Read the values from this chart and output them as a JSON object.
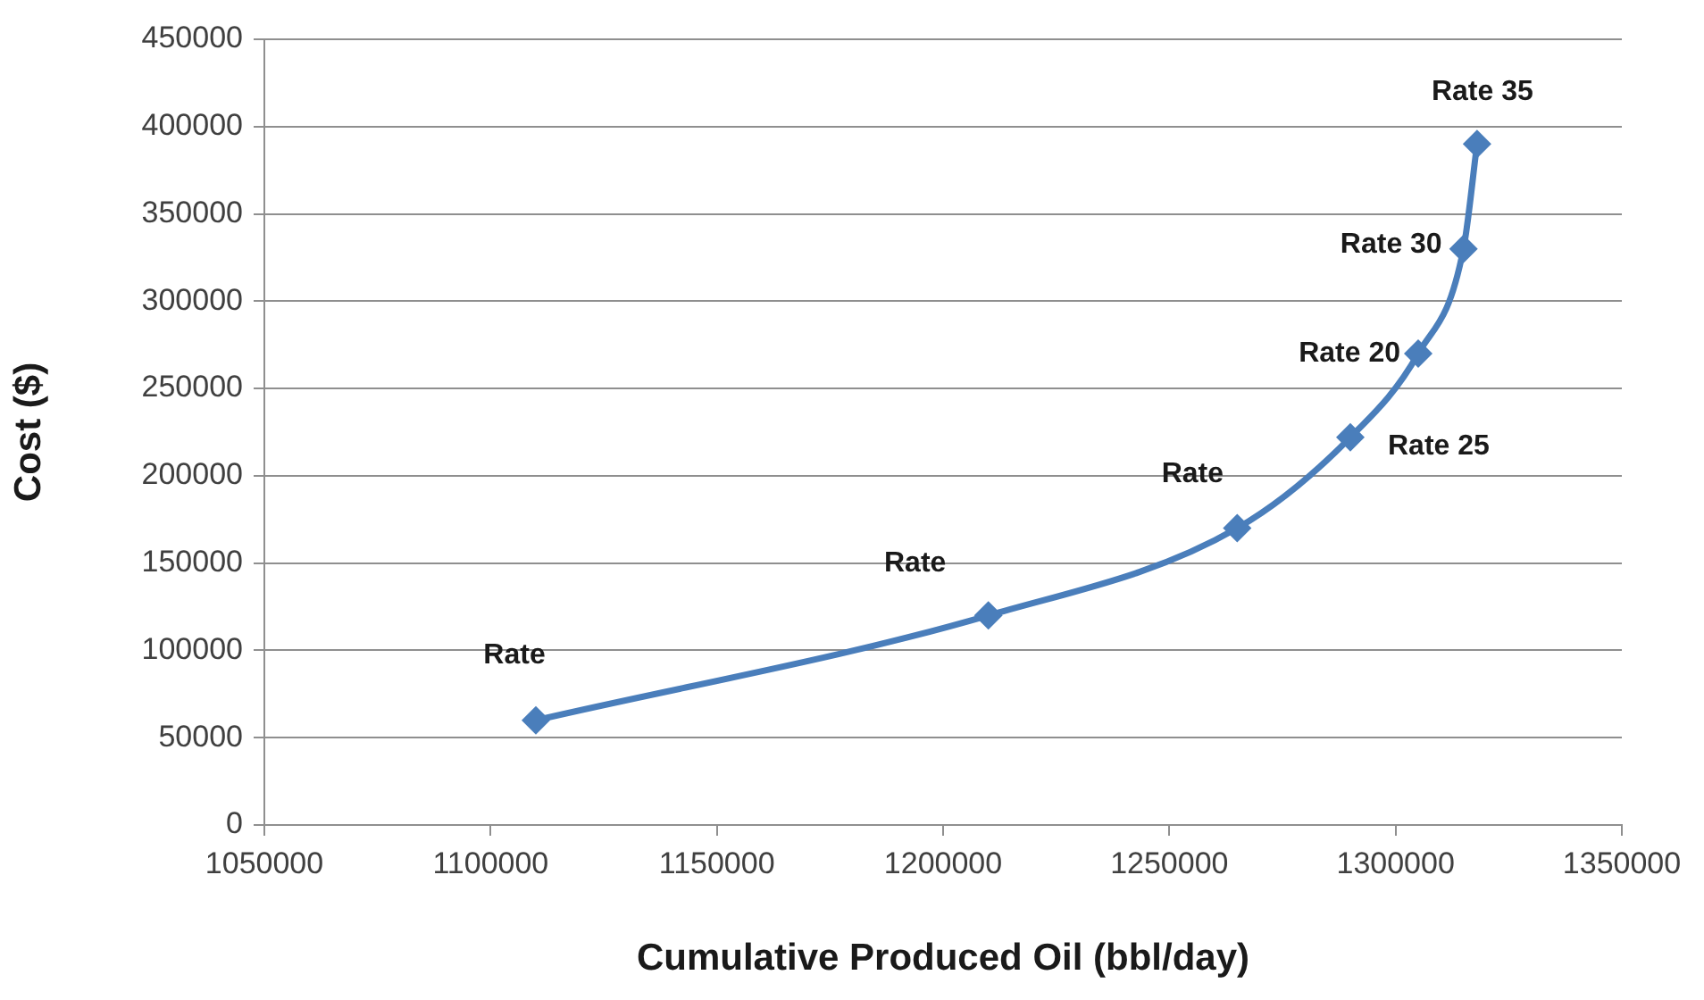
{
  "chart_data": {
    "type": "line",
    "xlabel": "Cumulative Produced Oil (bbl/day)",
    "ylabel": "Cost ($)",
    "x": [
      1110000,
      1210000,
      1265000,
      1290000,
      1305000,
      1315000,
      1318000
    ],
    "values": [
      60000,
      120000,
      170000,
      222000,
      270000,
      330000,
      390000
    ],
    "value_labels": [
      "Rate",
      "Rate",
      "Rate",
      "Rate 25",
      "Rate 20",
      "Rate 30",
      "Rate 35"
    ],
    "color": "#4a7ebb",
    "xlim": [
      1050000,
      1350000
    ],
    "xticks": [
      1050000,
      1100000,
      1150000,
      1200000,
      1250000,
      1300000,
      1350000
    ],
    "ylim": [
      0,
      450000
    ],
    "yticks": [
      0,
      50000,
      100000,
      150000,
      200000,
      250000,
      300000,
      350000,
      400000,
      450000
    ],
    "grid": "y",
    "marker": "diamond",
    "line_style": "solid"
  }
}
